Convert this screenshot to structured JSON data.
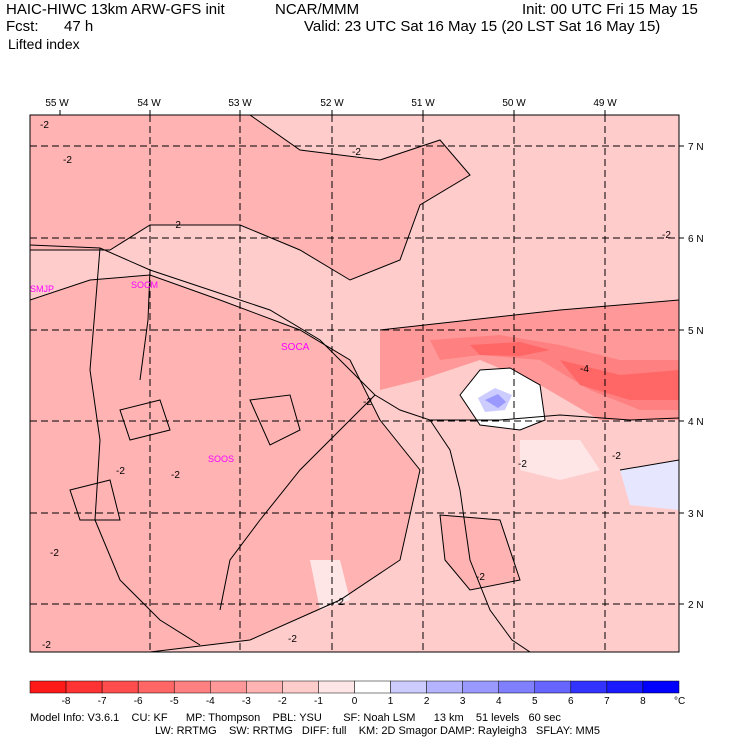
{
  "header": {
    "model_title": "HAIC-HIWC 13km ARW-GFS init",
    "org": "NCAR/MMM",
    "init": "Init: 00 UTC Fri 15 May 15",
    "fcst_label": "Fcst:",
    "fcst_value": "47 h",
    "valid": "Valid: 23 UTC Sat 16 May 15 (20 LST Sat 16 May 15)",
    "field": "Lifted index"
  },
  "map": {
    "lon_labels": [
      "55 W",
      "54 W",
      "53 W",
      "52 W",
      "51 W",
      "50 W",
      "49 W"
    ],
    "lat_labels": [
      "7 N",
      "6 N",
      "5 N",
      "4 N",
      "3 N",
      "2 N"
    ],
    "stations": [
      "SMJP",
      "SOCM",
      "SOCA",
      "SOOS"
    ],
    "contour_label": "-2",
    "contour_label_4": "-4"
  },
  "colorbar": {
    "ticks": [
      "-8",
      "-7",
      "-6",
      "-5",
      "-4",
      "-3",
      "-2",
      "-1",
      "0",
      "1",
      "2",
      "3",
      "4",
      "5",
      "6",
      "7",
      "8"
    ],
    "unit": "°C",
    "colors": [
      "#ff1a1a",
      "#ff3333",
      "#ff4d4d",
      "#ff6666",
      "#ff8080",
      "#ff9999",
      "#ffb3b3",
      "#ffcccc",
      "#ffe6e6",
      "#ffffff",
      "#ccccff",
      "#b3b3ff",
      "#9999ff",
      "#8080ff",
      "#6666ff",
      "#3333ff",
      "#1a1aff",
      "#0000ff"
    ]
  },
  "footer": {
    "line1": "Model Info: V3.6.1    CU: KF      MP: Thompson    PBL: YSU       SF: Noah LSM      13 km    51 levels   60 sec",
    "line2": "LW: RRTMG    SW: RRTMG   DIFF: full    KM: 2D Smagor DAMP: Rayleigh3   SFLAY: MM5"
  }
}
